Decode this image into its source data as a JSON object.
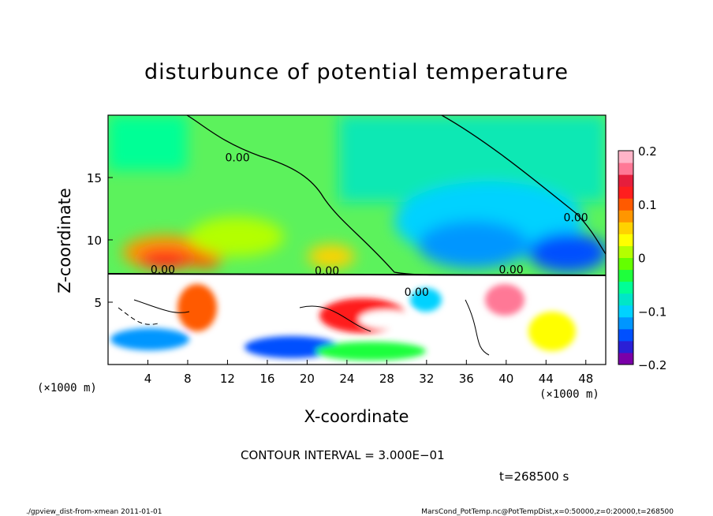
{
  "chart_data": {
    "type": "heatmap",
    "title": "disturbunce of potential temperature",
    "xlabel": "X-coordinate",
    "ylabel": "Z-coordinate",
    "x_unit_left": "(×1000 m)",
    "x_unit_right": "(×1000 m)",
    "xlim": [
      0,
      50
    ],
    "ylim": [
      0,
      20
    ],
    "xticks": [
      "4",
      "8",
      "12",
      "16",
      "20",
      "24",
      "28",
      "32",
      "36",
      "40",
      "44",
      "48"
    ],
    "yticks": [
      "5",
      "10",
      "15"
    ],
    "colorbar": {
      "range": [
        -0.2,
        0.2
      ],
      "ticks": [
        "0.2",
        "0.1",
        "0",
        "−0.1",
        "−0.2"
      ],
      "colors": [
        "#7a00a8",
        "#2a1fd6",
        "#0050ff",
        "#0096ff",
        "#00d2ff",
        "#00e6c8",
        "#00ff96",
        "#1eff3c",
        "#64ff00",
        "#b4ff00",
        "#ffff00",
        "#ffd200",
        "#ff9600",
        "#ff5a00",
        "#ff1e1e",
        "#e61e3c",
        "#ff7896",
        "#ffb4c8"
      ]
    },
    "contour_labels": [
      "0.00",
      "0.00",
      "0.00",
      "0.00",
      "0.00",
      "0.00"
    ],
    "contour_interval": "CONTOUR INTERVAL = 3.000E−01",
    "time": "t=268500 s"
  },
  "footer": {
    "left": "./gpview_dist-from-xmean  2011-01-01",
    "right": "MarsCond_PotTemp.nc@PotTempDist,x=0:50000,z=0:20000,t=268500"
  }
}
